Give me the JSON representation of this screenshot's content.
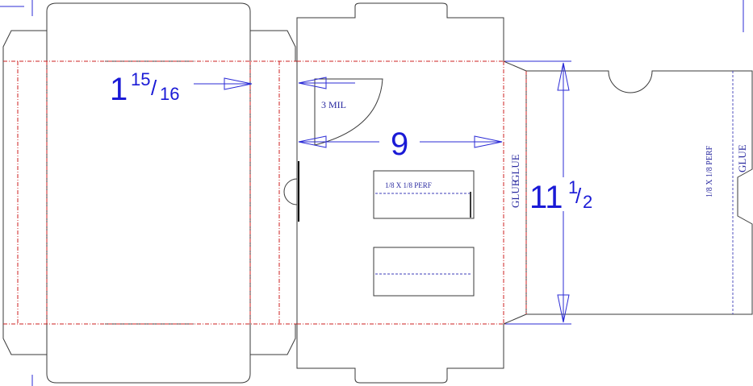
{
  "dimensions": {
    "flap_width": {
      "whole": "1",
      "numerator": "15",
      "denominator": "16"
    },
    "panel_length": {
      "whole": "9"
    },
    "panel_height": {
      "whole": "11",
      "numerator": "1",
      "denominator": "2"
    }
  },
  "notes": {
    "material": "3 MIL",
    "perforation": "1/8 X 1/8 PERF",
    "perforation_right": "1/8 X 1/8 PERF",
    "glue_a": "GLUE",
    "glue_b": "GLUE",
    "glue_right": "GLUE"
  },
  "colors": {
    "cut_line": "#3a3a3a",
    "fold_line": "#cc2222",
    "dimension": "#2b2bd6",
    "perforation": "#3d3db8"
  }
}
